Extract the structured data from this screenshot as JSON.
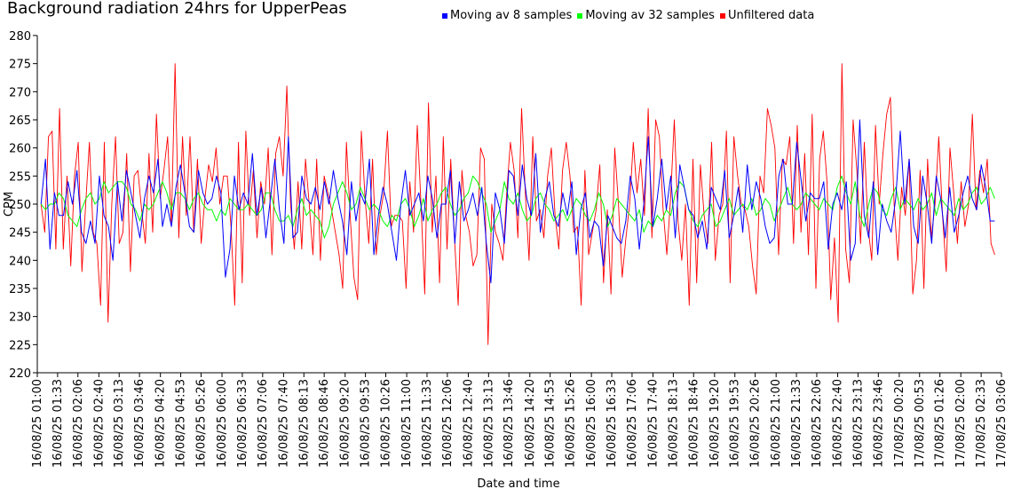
{
  "chart_data": {
    "type": "line",
    "title": "Background radiation 24hrs for UpperPeas",
    "xlabel": "Date and time",
    "ylabel": "CPM",
    "ylim": [
      220,
      280
    ],
    "yticks": [
      220,
      225,
      230,
      235,
      240,
      245,
      250,
      255,
      260,
      265,
      270,
      275,
      280
    ],
    "xtick_labels": [
      "16/08/25 01:00",
      "16/08/25 01:33",
      "16/08/25 02:06",
      "16/08/25 02:40",
      "16/08/25 03:13",
      "16/08/25 03:46",
      "16/08/25 04:20",
      "16/08/25 04:53",
      "16/08/25 05:26",
      "16/08/25 06:00",
      "16/08/25 06:33",
      "16/08/25 07:06",
      "16/08/25 07:40",
      "16/08/25 08:13",
      "16/08/25 08:46",
      "16/08/25 09:20",
      "16/08/25 09:53",
      "16/08/25 10:26",
      "16/08/25 11:00",
      "16/08/25 11:33",
      "16/08/25 12:06",
      "16/08/25 12:40",
      "16/08/25 13:13",
      "16/08/25 13:46",
      "16/08/25 14:20",
      "16/08/25 14:53",
      "16/08/25 15:26",
      "16/08/25 16:00",
      "16/08/25 16:33",
      "16/08/25 17:06",
      "16/08/25 17:40",
      "16/08/25 18:13",
      "16/08/25 18:46",
      "16/08/25 19:20",
      "16/08/25 19:53",
      "16/08/25 20:26",
      "16/08/25 21:00",
      "16/08/25 21:33",
      "16/08/25 22:06",
      "16/08/25 22:40",
      "16/08/25 23:13",
      "16/08/25 23:46",
      "17/08/25 00:20",
      "17/08/25 00:53",
      "17/08/25 01:26",
      "17/08/25 02:00",
      "17/08/25 02:33",
      "17/08/25 03:06"
    ],
    "legend_position": "top",
    "grid": false,
    "series": [
      {
        "name": "Moving av 8 samples",
        "color": "#0000ff",
        "start": "16/08/25 01:06",
        "end": "17/08/25 02:55",
        "values": [
          250,
          258,
          242,
          252,
          248,
          248,
          254,
          250,
          256,
          245,
          243,
          247,
          243,
          255,
          248,
          246,
          240,
          254,
          247,
          256,
          252,
          248,
          244,
          251,
          255,
          252,
          258,
          246,
          250,
          246,
          253,
          257,
          252,
          246,
          245,
          256,
          252,
          250,
          251,
          255,
          252,
          237,
          242,
          255,
          249,
          252,
          250,
          259,
          248,
          253,
          244,
          251,
          258,
          249,
          243,
          262,
          244,
          245,
          255,
          251,
          250,
          253,
          249,
          254,
          250,
          256,
          251,
          247,
          241,
          254,
          247,
          252,
          250,
          258,
          241,
          248,
          253,
          250,
          245,
          240,
          250,
          256,
          248,
          250,
          252,
          247,
          255,
          251,
          244,
          250,
          250,
          256,
          243,
          254,
          247,
          249,
          252,
          248,
          253,
          243,
          236,
          252,
          249,
          243,
          256,
          255,
          248,
          257,
          251,
          248,
          259,
          245,
          251,
          254,
          248,
          246,
          252,
          248,
          254,
          241,
          249,
          252,
          244,
          247,
          246,
          239,
          248,
          246,
          244,
          243,
          247,
          255,
          251,
          242,
          250,
          262,
          246,
          251,
          258,
          249,
          255,
          244,
          257,
          253,
          249,
          248,
          244,
          247,
          242,
          253,
          251,
          249,
          256,
          244,
          248,
          253,
          245,
          257,
          249,
          254,
          251,
          246,
          243,
          244,
          255,
          258,
          250,
          250,
          261,
          254,
          247,
          252,
          251,
          251,
          254,
          242,
          250,
          252,
          249,
          254,
          240,
          243,
          265,
          248,
          244,
          254,
          241,
          250,
          247,
          245,
          251,
          263,
          250,
          258,
          246,
          243,
          255,
          250,
          243,
          255,
          251,
          244,
          253,
          245,
          248,
          252,
          255,
          251,
          249,
          257,
          253,
          247,
          247
        ]
      },
      {
        "name": "Moving av 32 samples",
        "color": "#00ff00",
        "start": "16/08/25 01:06",
        "end": "17/08/25 02:55",
        "values": [
          250,
          249,
          250,
          250,
          252,
          251,
          248,
          247,
          246,
          249,
          251,
          252,
          250,
          251,
          254,
          252,
          253,
          254,
          254,
          253,
          250,
          249,
          247,
          250,
          249,
          250,
          252,
          254,
          252,
          249,
          252,
          252,
          251,
          249,
          251,
          252,
          250,
          249,
          249,
          247,
          249,
          248,
          251,
          250,
          249,
          249,
          250,
          249,
          248,
          249,
          252,
          252,
          249,
          247,
          247,
          248,
          246,
          249,
          251,
          248,
          249,
          248,
          247,
          244,
          246,
          250,
          252,
          254,
          252,
          249,
          250,
          253,
          251,
          249,
          250,
          249,
          247,
          246,
          248,
          247,
          250,
          251,
          249,
          246,
          248,
          251,
          247,
          249,
          250,
          252,
          253,
          250,
          248,
          249,
          251,
          252,
          255,
          254,
          252,
          250,
          245,
          247,
          249,
          254,
          251,
          250,
          252,
          249,
          247,
          248,
          251,
          252,
          250,
          249,
          247,
          248,
          249,
          247,
          249,
          251,
          250,
          248,
          247,
          249,
          252,
          250,
          246,
          248,
          251,
          250,
          249,
          248,
          247,
          249,
          245,
          247,
          246,
          248,
          247,
          249,
          248,
          252,
          254,
          253,
          249,
          247,
          246,
          248,
          249,
          250,
          246,
          247,
          249,
          251,
          248,
          249,
          250,
          249,
          251,
          248,
          249,
          251,
          250,
          247,
          249,
          251,
          253,
          250,
          249,
          250,
          252,
          251,
          250,
          249,
          251,
          250,
          249,
          253,
          255,
          252,
          250,
          254,
          248,
          246,
          250,
          253,
          252,
          249,
          248,
          251,
          253,
          249,
          251,
          250,
          249,
          251,
          249,
          250,
          252,
          248,
          251,
          250,
          249,
          248,
          251,
          249,
          250,
          252,
          253,
          250,
          251,
          253,
          251
        ]
      },
      {
        "name": "Unfiltered data",
        "color": "#ff0000",
        "start": "16/08/25 01:06",
        "end": "17/08/25 02:55",
        "values": [
          250,
          245,
          262,
          263,
          242,
          267,
          242,
          255,
          239,
          255,
          261,
          238,
          250,
          261,
          245,
          243,
          232,
          261,
          229,
          250,
          262,
          243,
          245,
          259,
          238,
          255,
          256,
          249,
          243,
          259,
          245,
          266,
          251,
          256,
          262,
          246,
          275,
          244,
          262,
          248,
          262,
          245,
          258,
          243,
          251,
          257,
          254,
          260,
          250,
          255,
          255,
          246,
          232,
          261,
          236,
          263,
          248,
          256,
          244,
          254,
          250,
          260,
          241,
          259,
          262,
          255,
          271,
          250,
          242,
          254,
          242,
          258,
          250,
          241,
          258,
          240,
          255,
          252,
          249,
          245,
          241,
          235,
          261,
          248,
          237,
          233,
          263,
          251,
          243,
          258,
          241,
          248,
          252,
          263,
          246,
          248,
          248,
          247,
          235,
          254,
          245,
          264,
          250,
          234,
          268,
          245,
          255,
          236,
          262,
          242,
          258,
          244,
          232,
          256,
          248,
          245,
          239,
          241,
          260,
          258,
          225,
          250,
          245,
          243,
          240,
          252,
          261,
          256,
          244,
          267,
          252,
          240,
          262,
          247,
          249,
          244,
          255,
          260,
          248,
          242,
          256,
          261,
          255,
          245,
          246,
          232,
          256,
          241,
          245,
          249,
          257,
          236,
          249,
          234,
          260,
          250,
          237,
          244,
          250,
          261,
          252,
          258,
          248,
          267,
          244,
          265,
          262,
          249,
          241,
          251,
          265,
          247,
          240,
          250,
          232,
          258,
          236,
          257,
          248,
          243,
          261,
          240,
          248,
          250,
          263,
          236,
          262,
          255,
          250,
          249,
          246,
          239,
          234,
          255,
          252,
          267,
          264,
          260,
          241,
          258,
          257,
          262,
          243,
          264,
          245,
          259,
          241,
          266,
          235,
          258,
          263,
          254,
          233,
          244,
          229,
          275,
          242,
          236,
          265,
          256,
          243,
          261,
          246,
          240,
          264,
          250,
          259,
          266,
          269,
          250,
          240,
          253,
          248,
          258,
          234,
          240,
          256,
          235,
          258,
          244,
          250,
          262,
          248,
          238,
          260,
          252,
          243,
          254,
          246,
          250,
          266,
          249,
          256,
          252,
          258,
          243,
          241
        ]
      }
    ]
  }
}
